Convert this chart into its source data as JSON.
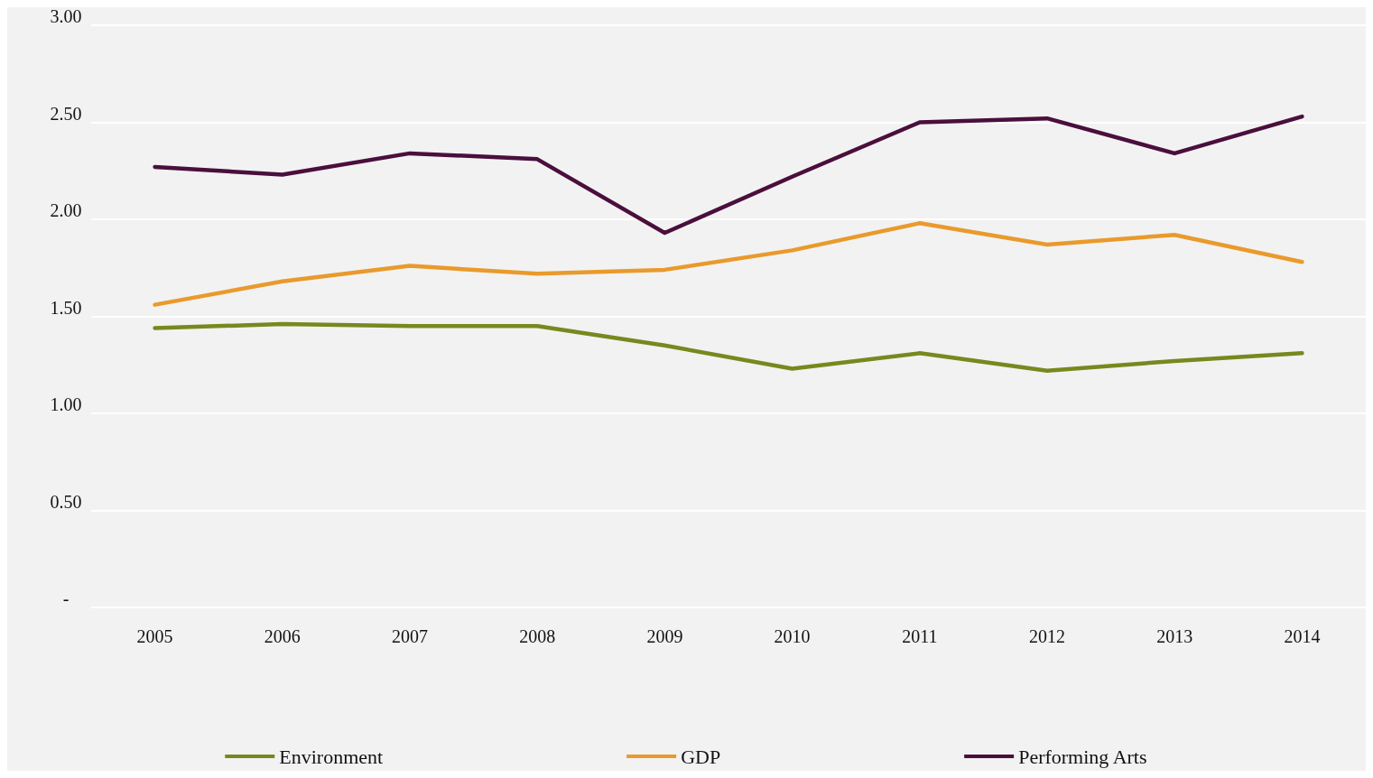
{
  "chart_data": {
    "type": "line",
    "categories": [
      "2005",
      "2006",
      "2007",
      "2008",
      "2009",
      "2010",
      "2011",
      "2012",
      "2013",
      "2014"
    ],
    "series": [
      {
        "name": "Environment",
        "color": "#76891f",
        "values": [
          1.44,
          1.46,
          1.45,
          1.45,
          1.35,
          1.23,
          1.31,
          1.22,
          1.27,
          1.31
        ]
      },
      {
        "name": "GDP",
        "color": "#e99a2c",
        "values": [
          1.56,
          1.68,
          1.76,
          1.72,
          1.74,
          1.84,
          1.98,
          1.87,
          1.92,
          1.78
        ]
      },
      {
        "name": "Performing Arts",
        "color": "#4a0f3c",
        "values": [
          2.27,
          2.23,
          2.34,
          2.31,
          1.93,
          2.22,
          2.5,
          2.52,
          2.34,
          2.53
        ]
      }
    ],
    "ylim": [
      0,
      3
    ],
    "yticks": [
      {
        "value": 0,
        "label": "-"
      },
      {
        "value": 0.5,
        "label": "0.50"
      },
      {
        "value": 1,
        "label": "1.00"
      },
      {
        "value": 1.5,
        "label": "1.50"
      },
      {
        "value": 2,
        "label": "2.00"
      },
      {
        "value": 2.5,
        "label": "2.50"
      },
      {
        "value": 3,
        "label": "3.00"
      }
    ],
    "grid": "y",
    "legend": "bottom",
    "marker": "none",
    "line_style": "solid"
  }
}
